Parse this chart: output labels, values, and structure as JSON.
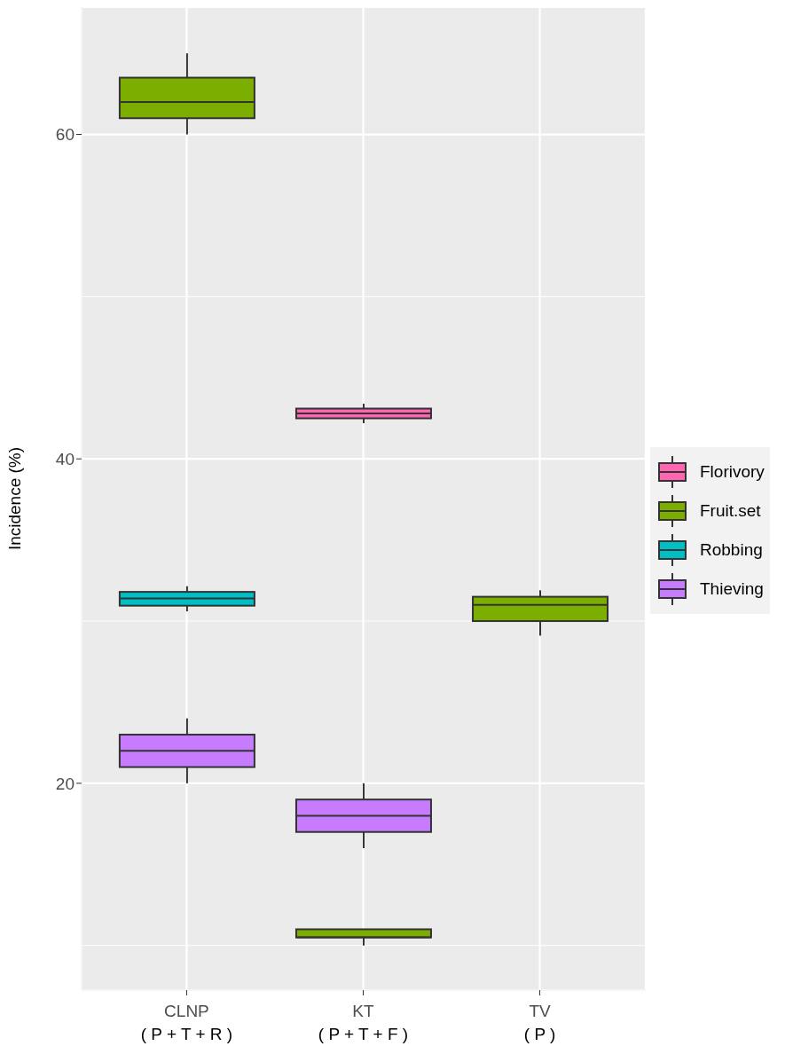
{
  "chart_data": {
    "type": "box",
    "ylabel": "Incidence (%)",
    "categories": [
      "CLNP\n( P + T + R )",
      "KT\n( P + T + F )",
      "TV\n( P )"
    ],
    "ylim": [
      7.25,
      67.85
    ],
    "yticks": [
      20,
      40,
      60
    ],
    "grid": true,
    "legend": "right",
    "series": [
      {
        "name": "Florivory",
        "color": "#ff66b2",
        "boxes": [
          null,
          {
            "low": 42.2,
            "q1": 42.5,
            "median": 42.8,
            "q3": 43.1,
            "high": 43.4
          },
          null
        ]
      },
      {
        "name": "Fruit.set",
        "color": "#7cae00",
        "boxes": [
          {
            "low": 60,
            "q1": 61,
            "median": 62,
            "q3": 63.5,
            "high": 65
          },
          {
            "low": 10,
            "q1": 10.5,
            "median": 10.5,
            "q3": 11,
            "high": 11
          },
          {
            "low": 29.1,
            "q1": 30,
            "median": 31,
            "q3": 31.5,
            "high": 31.9
          }
        ]
      },
      {
        "name": "Robbing",
        "color": "#00bfc4",
        "boxes": [
          {
            "low": 30.6,
            "q1": 30.95,
            "median": 31.4,
            "q3": 31.8,
            "high": 32.15
          },
          null,
          null
        ]
      },
      {
        "name": "Thieving",
        "color": "#c77cff",
        "boxes": [
          {
            "low": 20,
            "q1": 21,
            "median": 22,
            "q3": 23,
            "high": 24
          },
          {
            "low": 16,
            "q1": 17,
            "median": 18,
            "q3": 19,
            "high": 20
          },
          null
        ]
      }
    ]
  }
}
